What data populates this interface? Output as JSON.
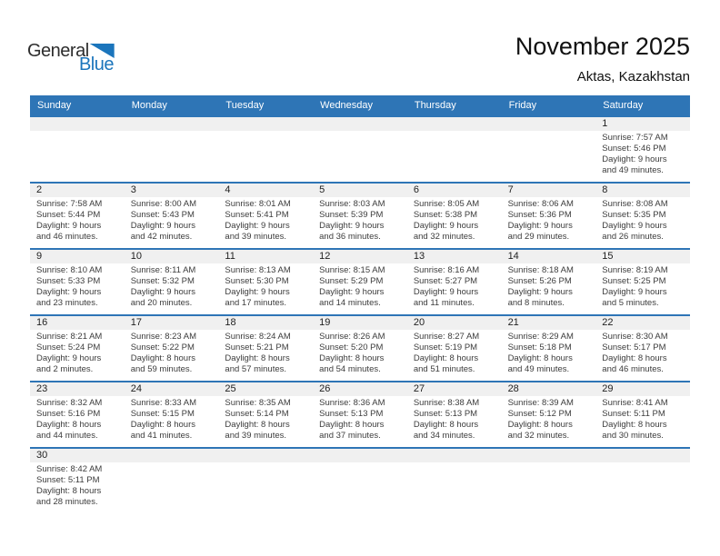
{
  "logo": {
    "word1": "General",
    "word2": "Blue"
  },
  "header": {
    "title": "November 2025",
    "subtitle": "Aktas, Kazakhstan"
  },
  "colors": {
    "header_bar_blue": "#2e75b6",
    "row_separator_blue": "#2e75b6",
    "day_band_gray": "#f0f0f0",
    "logo_blue": "#1b75bc",
    "weekday_text": "#ffffff",
    "detail_text": "#3c3c3c"
  },
  "weekdays": [
    "Sunday",
    "Monday",
    "Tuesday",
    "Wednesday",
    "Thursday",
    "Friday",
    "Saturday"
  ],
  "weeks": [
    [
      null,
      null,
      null,
      null,
      null,
      null,
      {
        "day": 1,
        "lines": [
          "Sunrise: 7:57 AM",
          "Sunset: 5:46 PM",
          "Daylight: 9 hours",
          "and 49 minutes."
        ]
      }
    ],
    [
      {
        "day": 2,
        "lines": [
          "Sunrise: 7:58 AM",
          "Sunset: 5:44 PM",
          "Daylight: 9 hours",
          "and 46 minutes."
        ]
      },
      {
        "day": 3,
        "lines": [
          "Sunrise: 8:00 AM",
          "Sunset: 5:43 PM",
          "Daylight: 9 hours",
          "and 42 minutes."
        ]
      },
      {
        "day": 4,
        "lines": [
          "Sunrise: 8:01 AM",
          "Sunset: 5:41 PM",
          "Daylight: 9 hours",
          "and 39 minutes."
        ]
      },
      {
        "day": 5,
        "lines": [
          "Sunrise: 8:03 AM",
          "Sunset: 5:39 PM",
          "Daylight: 9 hours",
          "and 36 minutes."
        ]
      },
      {
        "day": 6,
        "lines": [
          "Sunrise: 8:05 AM",
          "Sunset: 5:38 PM",
          "Daylight: 9 hours",
          "and 32 minutes."
        ]
      },
      {
        "day": 7,
        "lines": [
          "Sunrise: 8:06 AM",
          "Sunset: 5:36 PM",
          "Daylight: 9 hours",
          "and 29 minutes."
        ]
      },
      {
        "day": 8,
        "lines": [
          "Sunrise: 8:08 AM",
          "Sunset: 5:35 PM",
          "Daylight: 9 hours",
          "and 26 minutes."
        ]
      }
    ],
    [
      {
        "day": 9,
        "lines": [
          "Sunrise: 8:10 AM",
          "Sunset: 5:33 PM",
          "Daylight: 9 hours",
          "and 23 minutes."
        ]
      },
      {
        "day": 10,
        "lines": [
          "Sunrise: 8:11 AM",
          "Sunset: 5:32 PM",
          "Daylight: 9 hours",
          "and 20 minutes."
        ]
      },
      {
        "day": 11,
        "lines": [
          "Sunrise: 8:13 AM",
          "Sunset: 5:30 PM",
          "Daylight: 9 hours",
          "and 17 minutes."
        ]
      },
      {
        "day": 12,
        "lines": [
          "Sunrise: 8:15 AM",
          "Sunset: 5:29 PM",
          "Daylight: 9 hours",
          "and 14 minutes."
        ]
      },
      {
        "day": 13,
        "lines": [
          "Sunrise: 8:16 AM",
          "Sunset: 5:27 PM",
          "Daylight: 9 hours",
          "and 11 minutes."
        ]
      },
      {
        "day": 14,
        "lines": [
          "Sunrise: 8:18 AM",
          "Sunset: 5:26 PM",
          "Daylight: 9 hours",
          "and 8 minutes."
        ]
      },
      {
        "day": 15,
        "lines": [
          "Sunrise: 8:19 AM",
          "Sunset: 5:25 PM",
          "Daylight: 9 hours",
          "and 5 minutes."
        ]
      }
    ],
    [
      {
        "day": 16,
        "lines": [
          "Sunrise: 8:21 AM",
          "Sunset: 5:24 PM",
          "Daylight: 9 hours",
          "and 2 minutes."
        ]
      },
      {
        "day": 17,
        "lines": [
          "Sunrise: 8:23 AM",
          "Sunset: 5:22 PM",
          "Daylight: 8 hours",
          "and 59 minutes."
        ]
      },
      {
        "day": 18,
        "lines": [
          "Sunrise: 8:24 AM",
          "Sunset: 5:21 PM",
          "Daylight: 8 hours",
          "and 57 minutes."
        ]
      },
      {
        "day": 19,
        "lines": [
          "Sunrise: 8:26 AM",
          "Sunset: 5:20 PM",
          "Daylight: 8 hours",
          "and 54 minutes."
        ]
      },
      {
        "day": 20,
        "lines": [
          "Sunrise: 8:27 AM",
          "Sunset: 5:19 PM",
          "Daylight: 8 hours",
          "and 51 minutes."
        ]
      },
      {
        "day": 21,
        "lines": [
          "Sunrise: 8:29 AM",
          "Sunset: 5:18 PM",
          "Daylight: 8 hours",
          "and 49 minutes."
        ]
      },
      {
        "day": 22,
        "lines": [
          "Sunrise: 8:30 AM",
          "Sunset: 5:17 PM",
          "Daylight: 8 hours",
          "and 46 minutes."
        ]
      }
    ],
    [
      {
        "day": 23,
        "lines": [
          "Sunrise: 8:32 AM",
          "Sunset: 5:16 PM",
          "Daylight: 8 hours",
          "and 44 minutes."
        ]
      },
      {
        "day": 24,
        "lines": [
          "Sunrise: 8:33 AM",
          "Sunset: 5:15 PM",
          "Daylight: 8 hours",
          "and 41 minutes."
        ]
      },
      {
        "day": 25,
        "lines": [
          "Sunrise: 8:35 AM",
          "Sunset: 5:14 PM",
          "Daylight: 8 hours",
          "and 39 minutes."
        ]
      },
      {
        "day": 26,
        "lines": [
          "Sunrise: 8:36 AM",
          "Sunset: 5:13 PM",
          "Daylight: 8 hours",
          "and 37 minutes."
        ]
      },
      {
        "day": 27,
        "lines": [
          "Sunrise: 8:38 AM",
          "Sunset: 5:13 PM",
          "Daylight: 8 hours",
          "and 34 minutes."
        ]
      },
      {
        "day": 28,
        "lines": [
          "Sunrise: 8:39 AM",
          "Sunset: 5:12 PM",
          "Daylight: 8 hours",
          "and 32 minutes."
        ]
      },
      {
        "day": 29,
        "lines": [
          "Sunrise: 8:41 AM",
          "Sunset: 5:11 PM",
          "Daylight: 8 hours",
          "and 30 minutes."
        ]
      }
    ],
    [
      {
        "day": 30,
        "lines": [
          "Sunrise: 8:42 AM",
          "Sunset: 5:11 PM",
          "Daylight: 8 hours",
          "and 28 minutes."
        ]
      },
      null,
      null,
      null,
      null,
      null,
      null
    ]
  ]
}
